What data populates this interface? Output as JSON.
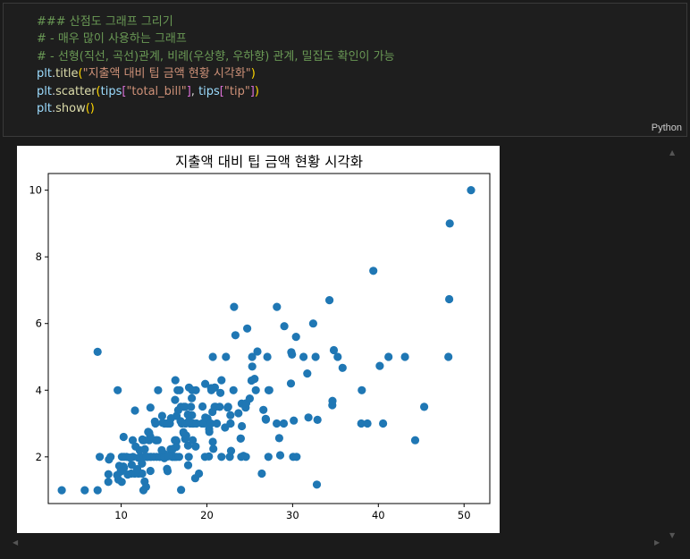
{
  "code_cell": {
    "language": "Python",
    "lines": [
      [
        {
          "t": "### 산점도 그래프 그리기",
          "c": "cm"
        }
      ],
      [
        {
          "t": "# - 매우 많이 사용하는 그래프",
          "c": "cm"
        }
      ],
      [
        {
          "t": "# - 선형(직선, 곡선)관계, 비례(우상향, 우하향) 관계, 밀집도 확인이 가능",
          "c": "cm"
        }
      ],
      [
        {
          "t": "plt",
          "c": "id"
        },
        {
          "t": ".",
          "c": "pl"
        },
        {
          "t": "title",
          "c": "fn"
        },
        {
          "t": "(",
          "c": "br1"
        },
        {
          "t": "\"지출액 대비 팁 금액 현황 시각화\"",
          "c": "str"
        },
        {
          "t": ")",
          "c": "br1"
        }
      ],
      [
        {
          "t": "plt",
          "c": "id"
        },
        {
          "t": ".",
          "c": "pl"
        },
        {
          "t": "scatter",
          "c": "fn"
        },
        {
          "t": "(",
          "c": "br1"
        },
        {
          "t": "tips",
          "c": "id"
        },
        {
          "t": "[",
          "c": "br2"
        },
        {
          "t": "\"total_bill\"",
          "c": "str"
        },
        {
          "t": "]",
          "c": "br2"
        },
        {
          "t": ", ",
          "c": "pl"
        },
        {
          "t": "tips",
          "c": "id"
        },
        {
          "t": "[",
          "c": "br2"
        },
        {
          "t": "\"tip\"",
          "c": "str"
        },
        {
          "t": "]",
          "c": "br2"
        },
        {
          "t": ")",
          "c": "br1"
        }
      ],
      [
        {
          "t": "plt",
          "c": "id"
        },
        {
          "t": ".",
          "c": "pl"
        },
        {
          "t": "show",
          "c": "fn"
        },
        {
          "t": "()",
          "c": "br1"
        }
      ]
    ]
  },
  "chart_data": {
    "type": "scatter",
    "title": "지출액 대비 팁 금액 현황 시각화",
    "xlabel": "",
    "ylabel": "",
    "xlim": [
      1.5,
      53
    ],
    "ylim": [
      0.6,
      10.5
    ],
    "xticks": [
      10,
      20,
      30,
      40,
      50
    ],
    "yticks": [
      2,
      4,
      6,
      8,
      10
    ],
    "grid": false,
    "color": "#1f77b4",
    "points": [
      [
        3.07,
        1.0
      ],
      [
        5.75,
        1.0
      ],
      [
        7.25,
        1.0
      ],
      [
        8.77,
        2.0
      ],
      [
        7.25,
        5.15
      ],
      [
        10.07,
        1.25
      ],
      [
        10.29,
        2.6
      ],
      [
        9.6,
        4.0
      ],
      [
        9.55,
        1.45
      ],
      [
        10.33,
        1.67
      ],
      [
        10.34,
        2.0
      ],
      [
        10.27,
        1.71
      ],
      [
        11.17,
        1.5
      ],
      [
        11.87,
        1.63
      ],
      [
        12.43,
        1.8
      ],
      [
        12.46,
        1.5
      ],
      [
        12.54,
        2.5
      ],
      [
        11.59,
        1.5
      ],
      [
        12.03,
        1.5
      ],
      [
        12.48,
        2.52
      ],
      [
        11.38,
        2.0
      ],
      [
        11.61,
        3.39
      ],
      [
        13.0,
        2.0
      ],
      [
        13.13,
        2.0
      ],
      [
        12.66,
        2.5
      ],
      [
        13.16,
        2.75
      ],
      [
        13.81,
        2.0
      ],
      [
        13.27,
        2.5
      ],
      [
        13.42,
        3.48
      ],
      [
        13.94,
        3.06
      ],
      [
        14.07,
        2.5
      ],
      [
        14.0,
        3.0
      ],
      [
        14.15,
        2.0
      ],
      [
        14.31,
        4.0
      ],
      [
        14.52,
        2.0
      ],
      [
        14.48,
        2.0
      ],
      [
        14.83,
        3.02
      ],
      [
        14.78,
        3.23
      ],
      [
        15.01,
        2.09
      ],
      [
        15.04,
        1.96
      ],
      [
        15.36,
        1.64
      ],
      [
        15.06,
        3.0
      ],
      [
        15.42,
        1.57
      ],
      [
        15.48,
        2.02
      ],
      [
        15.53,
        3.0
      ],
      [
        15.69,
        3.0
      ],
      [
        15.77,
        2.23
      ],
      [
        15.95,
        2.0
      ],
      [
        16.0,
        2.0
      ],
      [
        16.04,
        2.24
      ],
      [
        16.21,
        2.0
      ],
      [
        16.29,
        3.71
      ],
      [
        16.31,
        2.0
      ],
      [
        16.4,
        2.5
      ],
      [
        16.45,
        2.47
      ],
      [
        16.47,
        3.23
      ],
      [
        16.58,
        4.0
      ],
      [
        16.66,
        3.4
      ],
      [
        16.82,
        4.0
      ],
      [
        16.93,
        3.07
      ],
      [
        16.97,
        3.5
      ],
      [
        16.99,
        1.01
      ],
      [
        17.07,
        3.0
      ],
      [
        17.26,
        2.74
      ],
      [
        17.29,
        2.71
      ],
      [
        17.31,
        3.5
      ],
      [
        17.47,
        3.5
      ],
      [
        17.51,
        3.0
      ],
      [
        17.59,
        2.64
      ],
      [
        17.78,
        3.27
      ],
      [
        17.81,
        2.34
      ],
      [
        17.82,
        1.75
      ],
      [
        17.89,
        2.0
      ],
      [
        17.92,
        4.08
      ],
      [
        18.04,
        3.0
      ],
      [
        18.15,
        3.5
      ],
      [
        18.24,
        3.76
      ],
      [
        18.26,
        3.25
      ],
      [
        18.29,
        3.0
      ],
      [
        18.35,
        2.5
      ],
      [
        18.43,
        3.0
      ],
      [
        18.64,
        1.36
      ],
      [
        18.69,
        2.31
      ],
      [
        18.71,
        4.0
      ],
      [
        18.78,
        3.0
      ],
      [
        19.08,
        1.5
      ],
      [
        19.44,
        3.0
      ],
      [
        19.49,
        3.51
      ],
      [
        19.65,
        3.0
      ],
      [
        19.77,
        2.0
      ],
      [
        19.81,
        4.19
      ],
      [
        20.08,
        3.15
      ],
      [
        20.23,
        2.01
      ],
      [
        20.27,
        2.83
      ],
      [
        20.29,
        2.75
      ],
      [
        20.45,
        3.0
      ],
      [
        20.49,
        4.06
      ],
      [
        20.53,
        4.0
      ],
      [
        20.65,
        3.35
      ],
      [
        20.69,
        2.45
      ],
      [
        20.76,
        2.24
      ],
      [
        20.9,
        3.5
      ],
      [
        20.92,
        4.08
      ],
      [
        20.69,
        5.0
      ],
      [
        21.01,
        3.5
      ],
      [
        21.16,
        3.0
      ],
      [
        21.5,
        3.5
      ],
      [
        21.58,
        3.92
      ],
      [
        21.7,
        4.3
      ],
      [
        21.7,
        2.0
      ],
      [
        22.12,
        2.88
      ],
      [
        22.23,
        5.0
      ],
      [
        22.42,
        3.48
      ],
      [
        22.49,
        3.5
      ],
      [
        22.67,
        2.0
      ],
      [
        22.75,
        3.25
      ],
      [
        22.76,
        3.0
      ],
      [
        22.82,
        2.18
      ],
      [
        23.1,
        4.0
      ],
      [
        23.17,
        6.5
      ],
      [
        23.33,
        5.65
      ],
      [
        23.68,
        3.31
      ],
      [
        23.95,
        2.55
      ],
      [
        24.01,
        2.0
      ],
      [
        24.06,
        3.6
      ],
      [
        24.27,
        2.03
      ],
      [
        24.52,
        3.48
      ],
      [
        24.55,
        2.0
      ],
      [
        24.59,
        3.61
      ],
      [
        24.71,
        5.85
      ],
      [
        25.0,
        3.75
      ],
      [
        25.21,
        4.29
      ],
      [
        25.28,
        5.0
      ],
      [
        25.29,
        4.71
      ],
      [
        25.56,
        4.34
      ],
      [
        25.71,
        4.0
      ],
      [
        25.89,
        5.16
      ],
      [
        26.41,
        1.5
      ],
      [
        26.59,
        3.41
      ],
      [
        26.86,
        3.14
      ],
      [
        26.88,
        3.12
      ],
      [
        27.05,
        5.0
      ],
      [
        27.18,
        2.0
      ],
      [
        27.2,
        4.0
      ],
      [
        27.28,
        4.0
      ],
      [
        28.15,
        3.0
      ],
      [
        28.17,
        6.5
      ],
      [
        28.44,
        2.56
      ],
      [
        28.55,
        2.05
      ],
      [
        28.97,
        3.0
      ],
      [
        29.03,
        5.92
      ],
      [
        29.8,
        4.2
      ],
      [
        29.85,
        5.14
      ],
      [
        29.93,
        5.07
      ],
      [
        30.06,
        2.0
      ],
      [
        30.14,
        3.09
      ],
      [
        30.4,
        5.6
      ],
      [
        30.46,
        2.0
      ],
      [
        31.27,
        5.0
      ],
      [
        31.71,
        4.5
      ],
      [
        31.85,
        3.18
      ],
      [
        32.4,
        6.0
      ],
      [
        32.68,
        5.0
      ],
      [
        32.83,
        1.17
      ],
      [
        32.9,
        3.11
      ],
      [
        34.3,
        6.7
      ],
      [
        34.63,
        3.55
      ],
      [
        34.65,
        3.68
      ],
      [
        34.81,
        5.2
      ],
      [
        35.26,
        5.0
      ],
      [
        35.83,
        4.67
      ],
      [
        38.01,
        3.0
      ],
      [
        38.07,
        4.0
      ],
      [
        38.73,
        3.0
      ],
      [
        39.42,
        7.58
      ],
      [
        40.17,
        4.73
      ],
      [
        40.55,
        3.0
      ],
      [
        41.19,
        5.0
      ],
      [
        43.11,
        5.0
      ],
      [
        44.3,
        2.5
      ],
      [
        45.35,
        3.5
      ],
      [
        48.17,
        5.0
      ],
      [
        48.27,
        6.73
      ],
      [
        48.33,
        9.0
      ],
      [
        50.81,
        10.0
      ],
      [
        7.51,
        2.0
      ],
      [
        8.51,
        1.25
      ],
      [
        8.52,
        1.48
      ],
      [
        8.58,
        1.92
      ],
      [
        9.68,
        1.32
      ],
      [
        9.78,
        1.73
      ],
      [
        9.94,
        1.56
      ],
      [
        10.09,
        2.0
      ],
      [
        10.63,
        2.0
      ],
      [
        10.77,
        1.47
      ],
      [
        11.02,
        1.98
      ],
      [
        11.24,
        1.76
      ],
      [
        11.35,
        2.5
      ],
      [
        11.69,
        2.31
      ],
      [
        12.02,
        1.97
      ],
      [
        12.16,
        2.2
      ],
      [
        12.26,
        2.0
      ],
      [
        12.6,
        1.0
      ],
      [
        12.69,
        2.0
      ],
      [
        12.74,
        1.26
      ],
      [
        12.9,
        1.1
      ],
      [
        13.03,
        2.0
      ],
      [
        13.28,
        2.72
      ],
      [
        13.37,
        2.0
      ],
      [
        13.39,
        2.61
      ],
      [
        13.51,
        2.0
      ],
      [
        14.26,
        2.5
      ],
      [
        15.38,
        3.0
      ],
      [
        15.98,
        2.03
      ],
      [
        16.27,
        2.5
      ],
      [
        16.32,
        4.3
      ],
      [
        16.43,
        2.3
      ],
      [
        16.49,
        2.0
      ],
      [
        17.46,
        2.54
      ],
      [
        17.92,
        3.08
      ],
      [
        18.28,
        4.0
      ],
      [
        19.82,
        3.18
      ],
      [
        20.92,
        4.08
      ],
      [
        22.76,
        3.0
      ],
      [
        23.95,
        2.55
      ],
      [
        24.08,
        2.92
      ],
      [
        12.76,
        2.23
      ],
      [
        13.42,
        1.58
      ],
      [
        13.0,
        2.0
      ],
      [
        14.73,
        2.2
      ],
      [
        15.81,
        3.16
      ],
      [
        16.76,
        2.0
      ],
      [
        15.48,
        2.02
      ],
      [
        14.07,
        2.5
      ],
      [
        11.87,
        1.63
      ],
      [
        12.43,
        1.8
      ],
      [
        9.55,
        1.45
      ]
    ]
  }
}
